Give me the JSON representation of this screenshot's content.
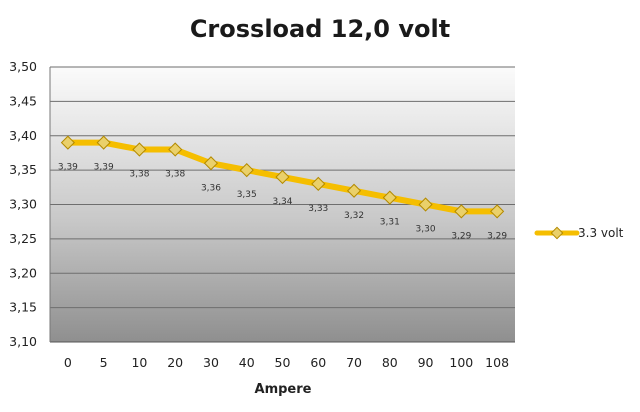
{
  "chart_data": {
    "type": "line",
    "title": "Crossload 12,0 volt",
    "xlabel": "Ampere",
    "ylabel": "",
    "categories": [
      "0",
      "5",
      "10",
      "20",
      "30",
      "40",
      "50",
      "60",
      "70",
      "80",
      "90",
      "100",
      "108"
    ],
    "ylim": [
      3.1,
      3.5
    ],
    "yticks": [
      "3,10",
      "3,15",
      "3,20",
      "3,25",
      "3,30",
      "3,35",
      "3,40",
      "3,45",
      "3,50"
    ],
    "ytick_values": [
      3.1,
      3.15,
      3.2,
      3.25,
      3.3,
      3.35,
      3.4,
      3.45,
      3.5
    ],
    "grid": "horizontal",
    "legend_position": "right",
    "series": [
      {
        "name": "3.3 volt",
        "color": "#f5be00",
        "values": [
          3.39,
          3.39,
          3.38,
          3.38,
          3.36,
          3.35,
          3.34,
          3.33,
          3.32,
          3.31,
          3.3,
          3.29,
          3.29
        ],
        "data_labels": [
          "3,39",
          "3,39",
          "3,38",
          "3,38",
          "3,36",
          "3,35",
          "3,34",
          "3,33",
          "3,32",
          "3,31",
          "3,30",
          "3,29",
          "3,29"
        ]
      }
    ]
  }
}
